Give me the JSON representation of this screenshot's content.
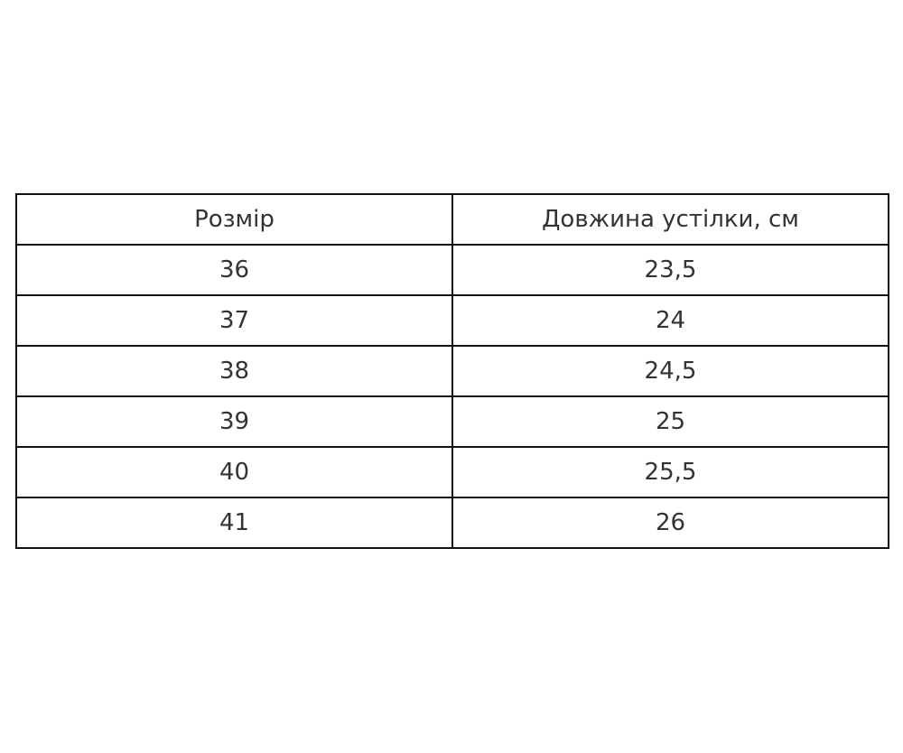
{
  "table": {
    "headers": [
      "Розмір",
      "Довжина устілки, см"
    ],
    "rows": [
      [
        "36",
        "23,5"
      ],
      [
        "37",
        "24"
      ],
      [
        "38",
        "24,5"
      ],
      [
        "39",
        "25"
      ],
      [
        "40",
        "25,5"
      ],
      [
        "41",
        "26"
      ]
    ]
  }
}
